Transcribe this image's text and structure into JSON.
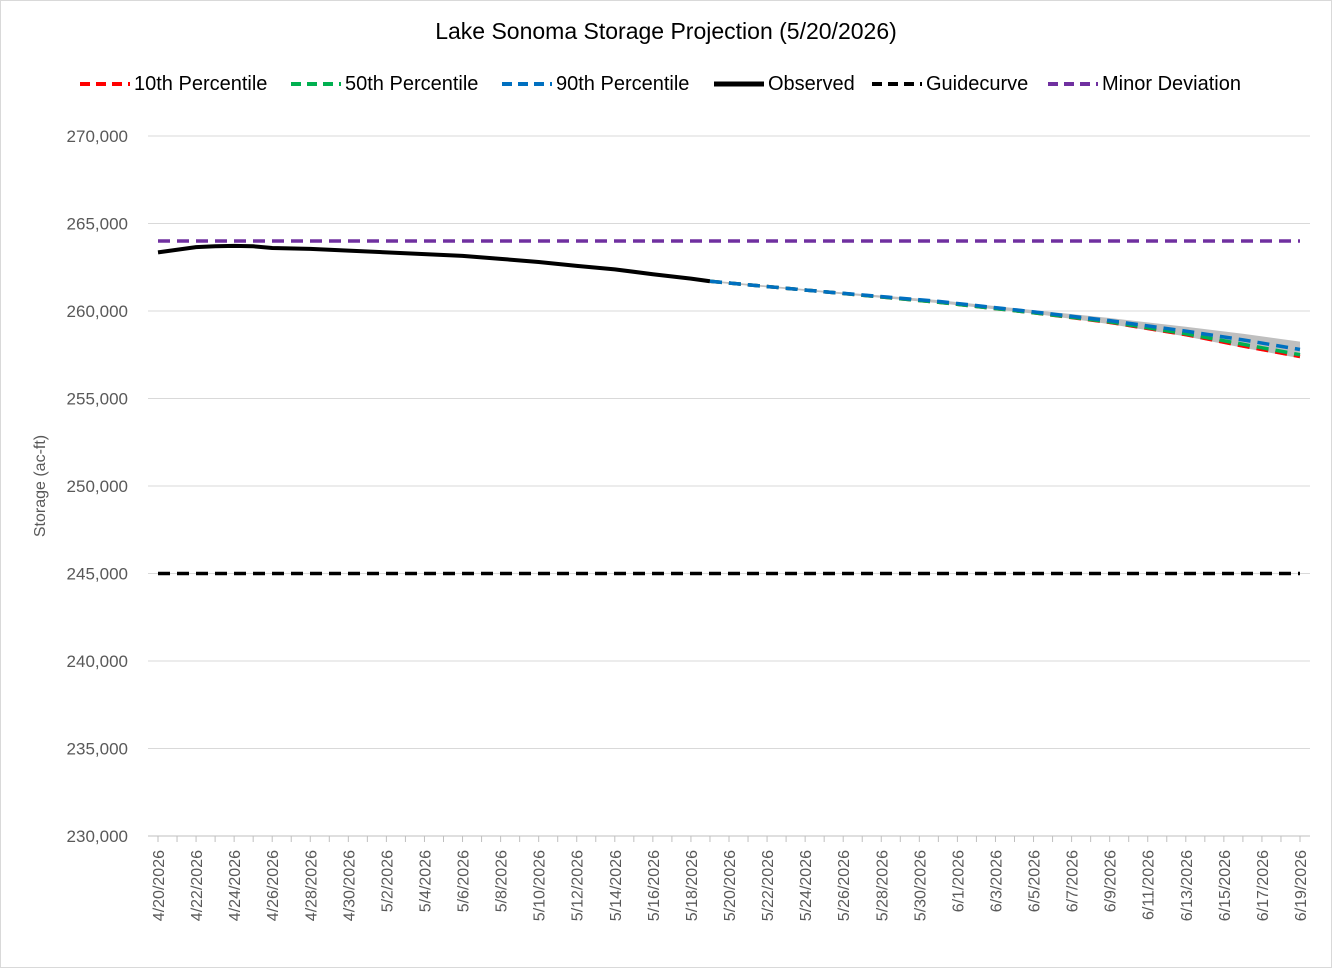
{
  "chart_data": {
    "type": "line",
    "title": "Lake Sonoma Storage Projection (5/20/2026)",
    "xlabel": "",
    "ylabel": "Storage (ac-ft)",
    "ylim": [
      230000,
      270000
    ],
    "yticks": [
      230000,
      235000,
      240000,
      245000,
      250000,
      255000,
      260000,
      265000,
      270000
    ],
    "ytick_labels": [
      "230,000",
      "235,000",
      "240,000",
      "245,000",
      "250,000",
      "255,000",
      "260,000",
      "265,000",
      "270,000"
    ],
    "x_range": [
      "4/20/2026",
      "6/19/2026"
    ],
    "xtick_labels": [
      "4/20/2026",
      "4/22/2026",
      "4/24/2026",
      "4/26/2026",
      "4/28/2026",
      "4/30/2026",
      "5/2/2026",
      "5/4/2026",
      "5/6/2026",
      "5/8/2026",
      "5/10/2026",
      "5/12/2026",
      "5/14/2026",
      "5/16/2026",
      "5/18/2026",
      "5/20/2026",
      "5/22/2026",
      "5/24/2026",
      "5/26/2026",
      "5/28/2026",
      "5/30/2026",
      "6/1/2026",
      "6/3/2026",
      "6/5/2026",
      "6/7/2026",
      "6/9/2026",
      "6/11/2026",
      "6/13/2026",
      "6/15/2026",
      "6/17/2026",
      "6/19/2026"
    ],
    "grid": true,
    "legend_position": "top",
    "series": [
      {
        "name": "10th Percentile",
        "color": "#ff0000",
        "style": "dashed",
        "x": [
          "5/19/2026",
          "5/25/2026",
          "5/31/2026",
          "6/5/2026",
          "6/9/2026",
          "6/13/2026",
          "6/16/2026",
          "6/19/2026"
        ],
        "values": [
          261700,
          261100,
          260500,
          259900,
          259350,
          258650,
          258000,
          257400
        ]
      },
      {
        "name": "50th Percentile",
        "color": "#00b050",
        "style": "dashed",
        "x": [
          "5/19/2026",
          "5/25/2026",
          "5/31/2026",
          "6/5/2026",
          "6/9/2026",
          "6/13/2026",
          "6/16/2026",
          "6/19/2026"
        ],
        "values": [
          261700,
          261100,
          260500,
          259900,
          259380,
          258700,
          258100,
          257500
        ]
      },
      {
        "name": "90th Percentile",
        "color": "#0070c0",
        "style": "dashed",
        "x": [
          "5/19/2026",
          "5/25/2026",
          "5/31/2026",
          "6/5/2026",
          "6/9/2026",
          "6/13/2026",
          "6/16/2026",
          "6/19/2026"
        ],
        "values": [
          261700,
          261100,
          260550,
          259950,
          259450,
          258850,
          258350,
          257800
        ]
      },
      {
        "name": "Observed",
        "color": "#000000",
        "style": "solid",
        "x": [
          "4/20/2026",
          "4/21/2026",
          "4/22/2026",
          "4/23/2026",
          "4/24/2026",
          "4/25/2026",
          "4/26/2026",
          "4/28/2026",
          "4/30/2026",
          "5/2/2026",
          "5/4/2026",
          "5/6/2026",
          "5/8/2026",
          "5/10/2026",
          "5/12/2026",
          "5/14/2026",
          "5/16/2026",
          "5/18/2026",
          "5/19/2026"
        ],
        "values": [
          263350,
          263500,
          263650,
          263700,
          263720,
          263700,
          263600,
          263550,
          263450,
          263350,
          263250,
          263150,
          262980,
          262800,
          262580,
          262380,
          262100,
          261850,
          261700
        ]
      },
      {
        "name": "Guidecurve",
        "color": "#000000",
        "style": "dashed",
        "x": [
          "4/20/2026",
          "6/19/2026"
        ],
        "values": [
          245000,
          245000
        ]
      },
      {
        "name": "Minor Deviation",
        "color": "#7030a0",
        "style": "dashed",
        "x": [
          "4/20/2026",
          "6/19/2026"
        ],
        "values": [
          264000,
          264000
        ]
      }
    ],
    "band": {
      "color": "#bfbfbf",
      "x": [
        "5/19/2026",
        "5/25/2026",
        "5/31/2026",
        "6/5/2026",
        "6/9/2026",
        "6/13/2026",
        "6/16/2026",
        "6/19/2026"
      ],
      "lower": [
        261650,
        261050,
        260450,
        259850,
        259250,
        258550,
        257900,
        257300
      ],
      "upper": [
        261750,
        261150,
        260620,
        260050,
        259600,
        259100,
        258700,
        258250
      ]
    }
  }
}
